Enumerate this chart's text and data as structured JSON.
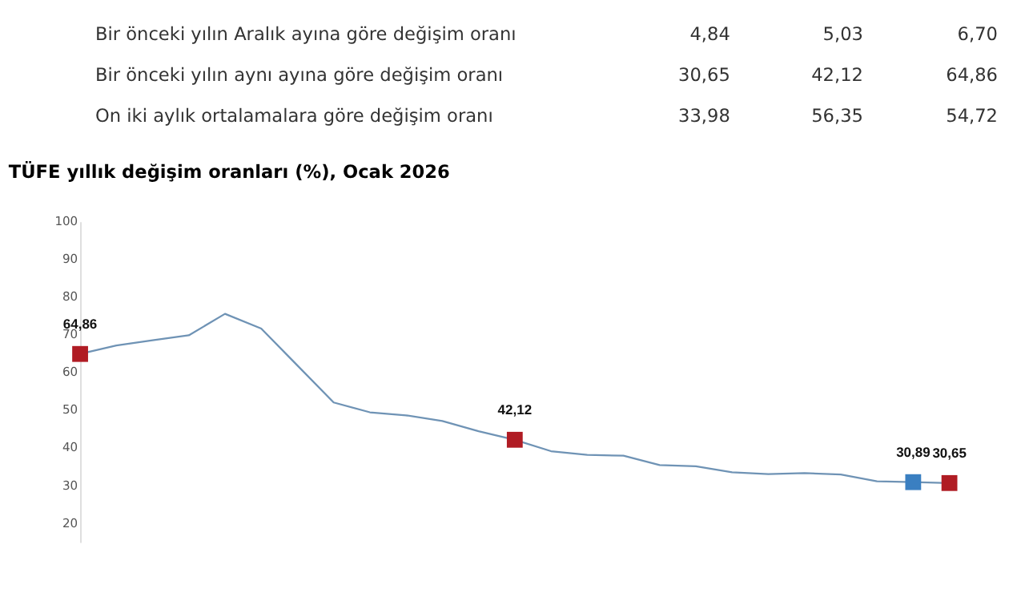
{
  "chart_data": {
    "type": "line",
    "title": "TÜFE yıllık değişim oranları (%), Ocak 2026",
    "annotations": [
      "Bir önceki yılın Aralık ayına göre değişim oranı",
      "4,84",
      "5,03",
      "6,70",
      "Bir önceki yılın aynı ayına göre değişim oranı",
      "30,65",
      "42,12",
      "64,86",
      "On iki aylık ortalamalara göre değişim oranı",
      "33,98",
      "56,35",
      "54,72"
    ],
    "categories": [
      null,
      null,
      null,
      null,
      null,
      null,
      null,
      null,
      null,
      null,
      null,
      null,
      null,
      null,
      null,
      null,
      null,
      null,
      null,
      null,
      null,
      null,
      null,
      null,
      null
    ],
    "series": [
      {
        "type": "line",
        "color": "#6f93b5",
        "values": [
          64.86,
          67.1,
          68.5,
          69.8,
          75.5,
          71.6,
          61.8,
          52.0,
          49.4,
          48.6,
          47.1,
          44.4,
          42.12,
          39.1,
          38.1,
          37.9,
          35.4,
          35.1,
          33.5,
          33.0,
          33.3,
          32.9,
          31.1,
          30.89,
          30.65
        ]
      },
      {
        "type": "scatter",
        "marker": "square",
        "colors": [
          "#b01c24",
          null,
          null,
          null,
          null,
          null,
          null,
          null,
          null,
          null,
          null,
          null,
          "#b01c24",
          null,
          null,
          null,
          null,
          null,
          null,
          null,
          null,
          null,
          null,
          "#3a7fc1",
          "#b01c24"
        ],
        "values": [
          64.86,
          null,
          null,
          null,
          null,
          null,
          null,
          null,
          null,
          null,
          null,
          null,
          42.12,
          null,
          null,
          null,
          null,
          null,
          null,
          null,
          null,
          null,
          null,
          30.89,
          30.65
        ],
        "value_labels": [
          "64,86",
          null,
          null,
          null,
          null,
          null,
          null,
          null,
          null,
          null,
          null,
          null,
          "42,12",
          null,
          null,
          null,
          null,
          null,
          null,
          null,
          null,
          null,
          null,
          "30,89",
          "30,65"
        ]
      }
    ],
    "ylim": [
      15,
      100
    ],
    "yticks": [
      20,
      30,
      40,
      50,
      60,
      70,
      80,
      90,
      100
    ],
    "grid": false,
    "legend": false
  }
}
